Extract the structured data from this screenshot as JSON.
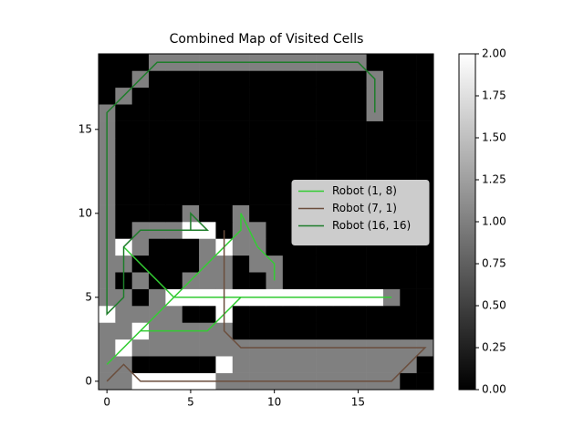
{
  "chart_data": {
    "type": "heatmap",
    "title": "Combined Map of Visited Cells",
    "colormap": [
      "#000000",
      "#ffffff"
    ],
    "origin": "lower",
    "z": [
      [
        1,
        1,
        2,
        2,
        2,
        2,
        2,
        1,
        1,
        1,
        1,
        1,
        1,
        1,
        1,
        1,
        1,
        1,
        0,
        0
      ],
      [
        1,
        1,
        0,
        0,
        0,
        0,
        0,
        2,
        1,
        1,
        1,
        1,
        1,
        1,
        1,
        1,
        1,
        1,
        1,
        0
      ],
      [
        1,
        2,
        1,
        1,
        1,
        1,
        1,
        1,
        1,
        1,
        1,
        1,
        1,
        1,
        1,
        1,
        1,
        1,
        1,
        1
      ],
      [
        1,
        1,
        2,
        1,
        1,
        1,
        1,
        1,
        0,
        0,
        0,
        0,
        0,
        0,
        0,
        0,
        0,
        0,
        0,
        0
      ],
      [
        2,
        1,
        1,
        1,
        1,
        0,
        0,
        2,
        0,
        0,
        0,
        0,
        0,
        0,
        0,
        0,
        0,
        0,
        0,
        0
      ],
      [
        1,
        1,
        0,
        1,
        2,
        2,
        2,
        2,
        2,
        2,
        2,
        2,
        2,
        2,
        2,
        2,
        2,
        1,
        0,
        0
      ],
      [
        1,
        0,
        1,
        0,
        0,
        1,
        1,
        1,
        0,
        0,
        1,
        0,
        0,
        0,
        0,
        0,
        0,
        0,
        0,
        0
      ],
      [
        1,
        1,
        0,
        0,
        0,
        0,
        1,
        1,
        0,
        1,
        1,
        0,
        0,
        0,
        0,
        0,
        0,
        0,
        0,
        0
      ],
      [
        1,
        2,
        1,
        0,
        0,
        0,
        1,
        2,
        1,
        1,
        0,
        0,
        0,
        0,
        0,
        0,
        0,
        0,
        0,
        0
      ],
      [
        1,
        0,
        1,
        1,
        1,
        2,
        2,
        0,
        1,
        1,
        0,
        0,
        0,
        0,
        0,
        0,
        0,
        0,
        0,
        0
      ],
      [
        1,
        0,
        0,
        0,
        0,
        1,
        0,
        0,
        1,
        0,
        0,
        0,
        0,
        0,
        0,
        0,
        0,
        0,
        0,
        0
      ],
      [
        1,
        0,
        0,
        0,
        0,
        0,
        0,
        0,
        0,
        0,
        0,
        0,
        0,
        0,
        0,
        0,
        0,
        0,
        0,
        0
      ],
      [
        1,
        0,
        0,
        0,
        0,
        0,
        0,
        0,
        0,
        0,
        0,
        0,
        0,
        0,
        0,
        0,
        0,
        0,
        0,
        0
      ],
      [
        1,
        0,
        0,
        0,
        0,
        0,
        0,
        0,
        0,
        0,
        0,
        0,
        0,
        0,
        0,
        0,
        0,
        0,
        0,
        0
      ],
      [
        1,
        0,
        0,
        0,
        0,
        0,
        0,
        0,
        0,
        0,
        0,
        0,
        0,
        0,
        0,
        0,
        0,
        0,
        0,
        0
      ],
      [
        1,
        0,
        0,
        0,
        0,
        0,
        0,
        0,
        0,
        0,
        0,
        0,
        0,
        0,
        0,
        0,
        0,
        0,
        0,
        0
      ],
      [
        1,
        0,
        0,
        0,
        0,
        0,
        0,
        0,
        0,
        0,
        0,
        0,
        0,
        0,
        0,
        0,
        1,
        0,
        0,
        0
      ],
      [
        0,
        1,
        0,
        0,
        0,
        0,
        0,
        0,
        0,
        0,
        0,
        0,
        0,
        0,
        0,
        0,
        1,
        0,
        0,
        0
      ],
      [
        0,
        0,
        1,
        0,
        0,
        0,
        0,
        0,
        0,
        0,
        0,
        0,
        0,
        0,
        0,
        0,
        1,
        0,
        0,
        0
      ],
      [
        0,
        0,
        0,
        1,
        1,
        1,
        1,
        1,
        1,
        1,
        1,
        1,
        1,
        1,
        1,
        1,
        0,
        0,
        0,
        0
      ]
    ],
    "xlim": [
      -0.5,
      19.5
    ],
    "ylim": [
      -0.5,
      19.5
    ],
    "xticks": [
      0,
      5,
      10,
      15
    ],
    "yticks": [
      0,
      5,
      10,
      15
    ],
    "series": [
      {
        "name": "Robot (1, 8)",
        "color": "#33cc33",
        "x": [
          1,
          4,
          17,
          8,
          6,
          2,
          1,
          0,
          8,
          8,
          9,
          10,
          10
        ],
        "y": [
          8,
          5,
          5,
          5,
          3,
          3,
          2,
          1,
          9,
          10,
          8,
          7,
          6
        ]
      },
      {
        "name": "Robot (7, 1)",
        "color": "#6b4e3d",
        "x": [
          7,
          7,
          8,
          19,
          17,
          2,
          1,
          0
        ],
        "y": [
          9,
          3,
          2,
          2,
          0,
          0,
          1,
          0
        ]
      },
      {
        "name": "Robot (16, 16)",
        "color": "#1e7d2a",
        "x": [
          16,
          16,
          15,
          3,
          0,
          0,
          1,
          1,
          2,
          6,
          5,
          5
        ],
        "y": [
          16,
          18,
          19,
          19,
          16,
          4,
          5,
          8,
          9,
          9,
          10,
          9
        ]
      }
    ],
    "legend": "center right",
    "colorbar": {
      "lim": [
        0,
        2
      ],
      "ticks": [
        {
          "value": 0,
          "label": "0.00"
        },
        {
          "value": 0.25,
          "label": "0.25"
        },
        {
          "value": 0.5,
          "label": "0.50"
        },
        {
          "value": 0.75,
          "label": "0.75"
        },
        {
          "value": 1,
          "label": "1.00"
        },
        {
          "value": 1.25,
          "label": "1.25"
        },
        {
          "value": 1.5,
          "label": "1.50"
        },
        {
          "value": 1.75,
          "label": "1.75"
        },
        {
          "value": 2,
          "label": "2.00"
        }
      ]
    }
  }
}
